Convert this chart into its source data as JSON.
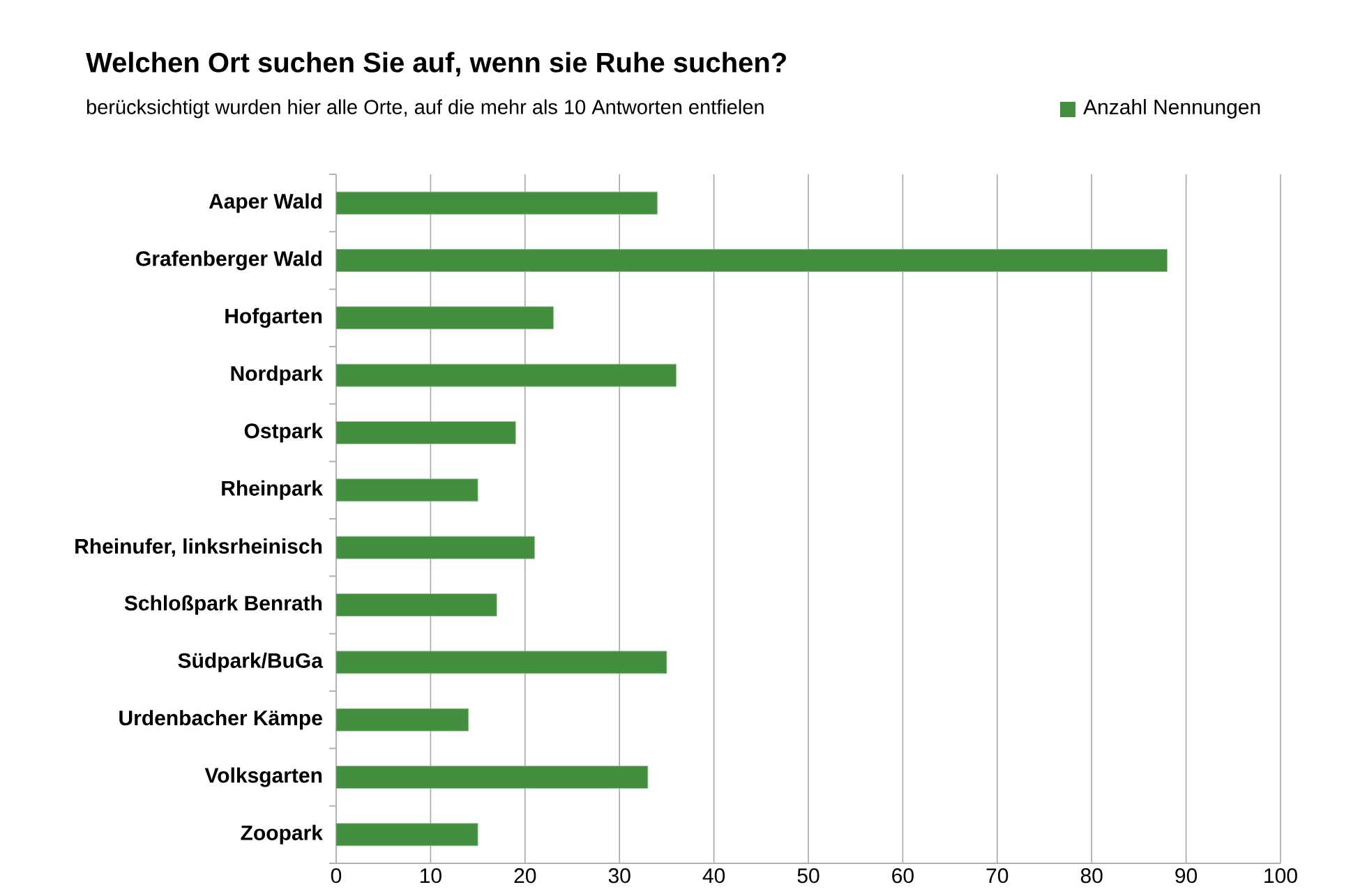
{
  "chart_data": {
    "type": "bar",
    "orientation": "horizontal",
    "title": "Welchen Ort suchen Sie auf, wenn sie Ruhe suchen?",
    "subtitle": "berücksichtigt wurden hier alle  Orte, auf die mehr als 10 Antworten entfielen",
    "categories": [
      "Aaper Wald",
      "Grafenberger Wald",
      "Hofgarten",
      "Nordpark",
      "Ostpark",
      "Rheinpark",
      "Rheinufer, linksrheinisch",
      "Schloßpark Benrath",
      "Südpark/BuGa",
      "Urdenbacher Kämpe",
      "Volksgarten",
      "Zoopark"
    ],
    "series": [
      {
        "name": "Anzahl Nennungen",
        "color": "#438e3f",
        "values": [
          34,
          88,
          23,
          36,
          19,
          15,
          21,
          17,
          35,
          14,
          33,
          15
        ]
      }
    ],
    "xlim": [
      0,
      100
    ],
    "xticks": [
      0,
      10,
      20,
      30,
      40,
      50,
      60,
      70,
      80,
      90,
      100
    ],
    "grid": "x",
    "legend": "top right"
  }
}
